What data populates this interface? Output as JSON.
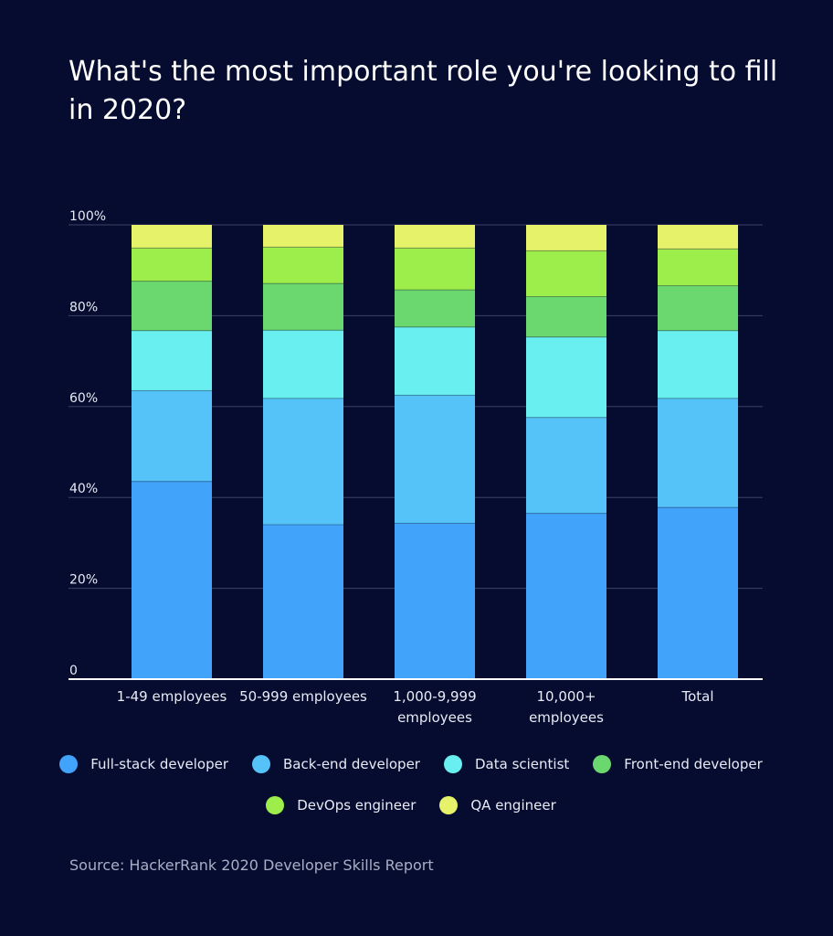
{
  "title": "What's the most important role you're looking to fill in 2020?",
  "source": "Source: HackerRank 2020 Developer Skills Report",
  "chart_data": {
    "type": "bar",
    "stacked": true,
    "title": "What's the most important role you're looking to fill in 2020?",
    "categories": [
      [
        "1-49 employees"
      ],
      [
        "50-999 employees"
      ],
      [
        "1,000-9,999",
        "employees"
      ],
      [
        "10,000+",
        "employees"
      ],
      [
        "Total"
      ]
    ],
    "category_names": [
      "1-49 employees",
      "50-999 employees",
      "1,000-9,999 employees",
      "10,000+ employees",
      "Total"
    ],
    "ylim": [
      0,
      100
    ],
    "yticks": [
      {
        "value": 0,
        "label": "0"
      },
      {
        "value": 20,
        "label": "20%"
      },
      {
        "value": 40,
        "label": "40%"
      },
      {
        "value": 60,
        "label": "60%"
      },
      {
        "value": 80,
        "label": "80%"
      },
      {
        "value": 100,
        "label": "100%"
      }
    ],
    "grid": true,
    "legend_position": "bottom",
    "series": [
      {
        "name": "Full-stack developer",
        "color": "#41a3fa",
        "values": [
          43.5,
          34.0,
          34.3,
          36.5,
          37.8
        ]
      },
      {
        "name": "Back-end developer",
        "color": "#55c3f7",
        "values": [
          20.0,
          27.8,
          28.2,
          21.1,
          24.0
        ]
      },
      {
        "name": "Data scientist",
        "color": "#6aeff0",
        "values": [
          13.2,
          15.0,
          15.0,
          17.7,
          14.9
        ]
      },
      {
        "name": "Front-end developer",
        "color": "#6ad86f",
        "values": [
          10.9,
          10.3,
          8.2,
          8.9,
          9.9
        ]
      },
      {
        "name": "DevOps engineer",
        "color": "#9dee4b",
        "values": [
          7.3,
          8.0,
          9.2,
          10.1,
          8.1
        ]
      },
      {
        "name": "QA engineer",
        "color": "#e6f36a",
        "values": [
          5.1,
          4.9,
          5.1,
          5.7,
          5.3
        ]
      }
    ]
  }
}
